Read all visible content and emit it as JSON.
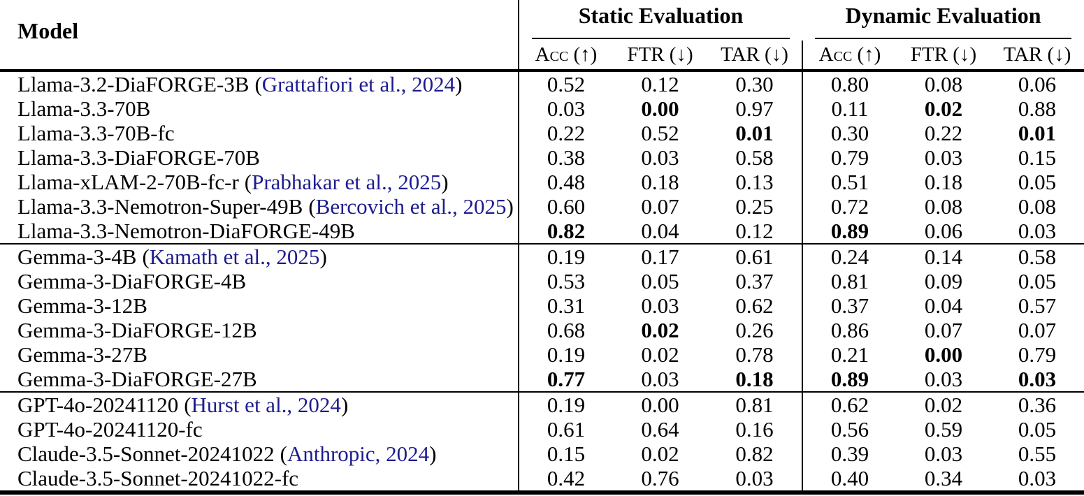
{
  "table": {
    "header": {
      "model_label": "Model",
      "group_titles": [
        "Static Evaluation",
        "Dynamic Evaluation"
      ],
      "metric_labels": [
        "Acc (↑)",
        "FTR (↓)",
        "TAR (↓)"
      ],
      "metric_keys": [
        "acc",
        "ftr",
        "tar"
      ]
    },
    "punctuation": {
      "open": "(",
      "close": ")"
    },
    "colors": {
      "citation": "#1c1c8f",
      "text": "#000000",
      "rule": "#000000"
    },
    "groups": [
      {
        "name": "llama-models",
        "rows": [
          {
            "name": "Llama-3.2-DiaFORGE-3B",
            "citation": "Grattafiori et al., 2024",
            "static": [
              "0.52",
              "0.12",
              "0.30"
            ],
            "static_bold": [
              false,
              false,
              false
            ],
            "dynamic": [
              "0.80",
              "0.08",
              "0.06"
            ],
            "dynamic_bold": [
              false,
              false,
              false
            ]
          },
          {
            "name": "Llama-3.3-70B",
            "citation": null,
            "static": [
              "0.03",
              "0.00",
              "0.97"
            ],
            "static_bold": [
              false,
              true,
              false
            ],
            "dynamic": [
              "0.11",
              "0.02",
              "0.88"
            ],
            "dynamic_bold": [
              false,
              true,
              false
            ]
          },
          {
            "name": "Llama-3.3-70B-fc",
            "citation": null,
            "static": [
              "0.22",
              "0.52",
              "0.01"
            ],
            "static_bold": [
              false,
              false,
              true
            ],
            "dynamic": [
              "0.30",
              "0.22",
              "0.01"
            ],
            "dynamic_bold": [
              false,
              false,
              true
            ]
          },
          {
            "name": "Llama-3.3-DiaFORGE-70B",
            "citation": null,
            "static": [
              "0.38",
              "0.03",
              "0.58"
            ],
            "static_bold": [
              false,
              false,
              false
            ],
            "dynamic": [
              "0.79",
              "0.03",
              "0.15"
            ],
            "dynamic_bold": [
              false,
              false,
              false
            ]
          },
          {
            "name": "Llama-xLAM-2-70B-fc-r",
            "citation": "Prabhakar et al., 2025",
            "static": [
              "0.48",
              "0.18",
              "0.13"
            ],
            "static_bold": [
              false,
              false,
              false
            ],
            "dynamic": [
              "0.51",
              "0.18",
              "0.05"
            ],
            "dynamic_bold": [
              false,
              false,
              false
            ]
          },
          {
            "name": "Llama-3.3-Nemotron-Super-49B",
            "citation": "Bercovich et al., 2025",
            "static": [
              "0.60",
              "0.07",
              "0.25"
            ],
            "static_bold": [
              false,
              false,
              false
            ],
            "dynamic": [
              "0.72",
              "0.08",
              "0.08"
            ],
            "dynamic_bold": [
              false,
              false,
              false
            ]
          },
          {
            "name": "Llama-3.3-Nemotron-DiaFORGE-49B",
            "citation": null,
            "static": [
              "0.82",
              "0.04",
              "0.12"
            ],
            "static_bold": [
              true,
              false,
              false
            ],
            "dynamic": [
              "0.89",
              "0.06",
              "0.03"
            ],
            "dynamic_bold": [
              true,
              false,
              false
            ]
          }
        ]
      },
      {
        "name": "gemma-models",
        "rows": [
          {
            "name": "Gemma-3-4B",
            "citation": "Kamath et al., 2025",
            "static": [
              "0.19",
              "0.17",
              "0.61"
            ],
            "static_bold": [
              false,
              false,
              false
            ],
            "dynamic": [
              "0.24",
              "0.14",
              "0.58"
            ],
            "dynamic_bold": [
              false,
              false,
              false
            ]
          },
          {
            "name": "Gemma-3-DiaFORGE-4B",
            "citation": null,
            "static": [
              "0.53",
              "0.05",
              "0.37"
            ],
            "static_bold": [
              false,
              false,
              false
            ],
            "dynamic": [
              "0.81",
              "0.09",
              "0.05"
            ],
            "dynamic_bold": [
              false,
              false,
              false
            ]
          },
          {
            "name": "Gemma-3-12B",
            "citation": null,
            "static": [
              "0.31",
              "0.03",
              "0.62"
            ],
            "static_bold": [
              false,
              false,
              false
            ],
            "dynamic": [
              "0.37",
              "0.04",
              "0.57"
            ],
            "dynamic_bold": [
              false,
              false,
              false
            ]
          },
          {
            "name": "Gemma-3-DiaFORGE-12B",
            "citation": null,
            "static": [
              "0.68",
              "0.02",
              "0.26"
            ],
            "static_bold": [
              false,
              true,
              false
            ],
            "dynamic": [
              "0.86",
              "0.07",
              "0.07"
            ],
            "dynamic_bold": [
              false,
              false,
              false
            ]
          },
          {
            "name": "Gemma-3-27B",
            "citation": null,
            "static": [
              "0.19",
              "0.02",
              "0.78"
            ],
            "static_bold": [
              false,
              false,
              false
            ],
            "dynamic": [
              "0.21",
              "0.00",
              "0.79"
            ],
            "dynamic_bold": [
              false,
              true,
              false
            ]
          },
          {
            "name": "Gemma-3-DiaFORGE-27B",
            "citation": null,
            "static": [
              "0.77",
              "0.03",
              "0.18"
            ],
            "static_bold": [
              true,
              false,
              true
            ],
            "dynamic": [
              "0.89",
              "0.03",
              "0.03"
            ],
            "dynamic_bold": [
              true,
              false,
              true
            ]
          }
        ]
      },
      {
        "name": "gpt-claude-models",
        "rows": [
          {
            "name": "GPT-4o-20241120",
            "citation": "Hurst et al., 2024",
            "static": [
              "0.19",
              "0.00",
              "0.81"
            ],
            "static_bold": [
              false,
              false,
              false
            ],
            "dynamic": [
              "0.62",
              "0.02",
              "0.36"
            ],
            "dynamic_bold": [
              false,
              false,
              false
            ]
          },
          {
            "name": "GPT-4o-20241120-fc",
            "citation": null,
            "static": [
              "0.61",
              "0.64",
              "0.16"
            ],
            "static_bold": [
              false,
              false,
              false
            ],
            "dynamic": [
              "0.56",
              "0.59",
              "0.05"
            ],
            "dynamic_bold": [
              false,
              false,
              false
            ]
          },
          {
            "name": "Claude-3.5-Sonnet-20241022",
            "citation": "Anthropic, 2024",
            "static": [
              "0.15",
              "0.02",
              "0.82"
            ],
            "static_bold": [
              false,
              false,
              false
            ],
            "dynamic": [
              "0.39",
              "0.03",
              "0.55"
            ],
            "dynamic_bold": [
              false,
              false,
              false
            ]
          },
          {
            "name": "Claude-3.5-Sonnet-20241022-fc",
            "citation": null,
            "static": [
              "0.42",
              "0.76",
              "0.03"
            ],
            "static_bold": [
              false,
              false,
              false
            ],
            "dynamic": [
              "0.40",
              "0.34",
              "0.03"
            ],
            "dynamic_bold": [
              false,
              false,
              false
            ]
          }
        ]
      }
    ]
  }
}
